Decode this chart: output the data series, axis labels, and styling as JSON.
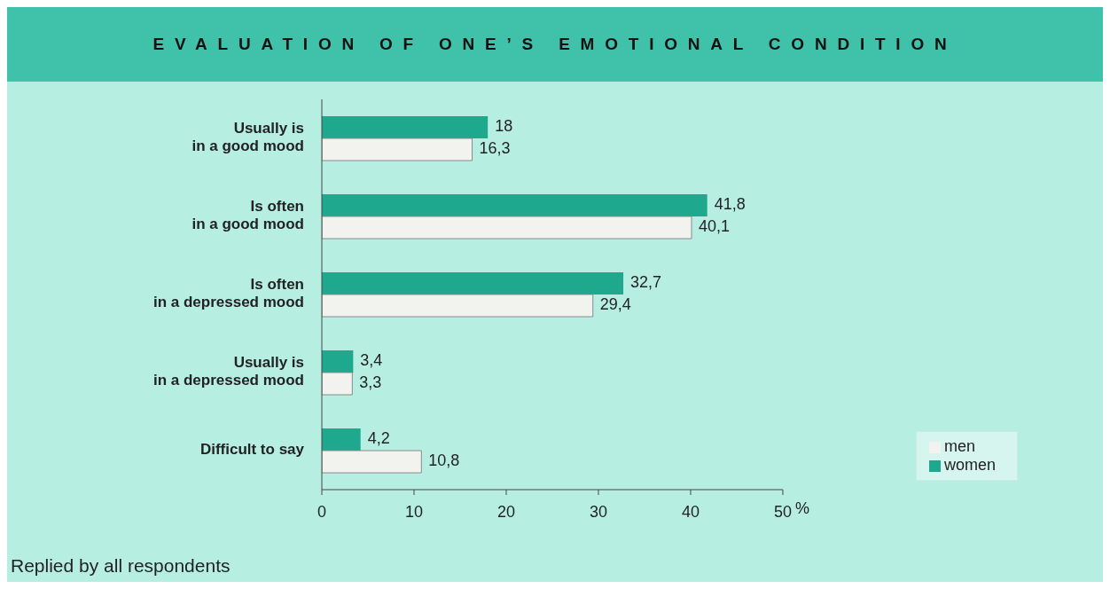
{
  "chart_data": {
    "type": "bar",
    "orientation": "horizontal",
    "title": "EVALUATION OF ONE’S EMOTIONAL CONDITION",
    "xlabel": "%",
    "categories": [
      "Usually is\nin a good mood",
      "Is often\nin a good mood",
      "Is often\nin a depressed mood",
      "Usually is\nin a depressed mood",
      "Difficult to say"
    ],
    "series": [
      {
        "name": "women",
        "color": "#1ea88e",
        "values": [
          18,
          41.8,
          32.7,
          3.4,
          4.2
        ],
        "value_labels": [
          "18",
          "41,8",
          "32,7",
          "3,4",
          "4,2"
        ]
      },
      {
        "name": "men",
        "color": "#f2f2ee",
        "values": [
          16.3,
          40.1,
          29.4,
          3.3,
          10.8
        ],
        "value_labels": [
          "16,3",
          "40,1",
          "29,4",
          "3,3",
          "10,8"
        ]
      }
    ],
    "xlim": [
      0,
      50
    ],
    "xticks": [
      0,
      10,
      20,
      30,
      40,
      50
    ],
    "grid": false,
    "legend": "bottom right",
    "annotations": [
      "Replied by all respondents"
    ]
  }
}
